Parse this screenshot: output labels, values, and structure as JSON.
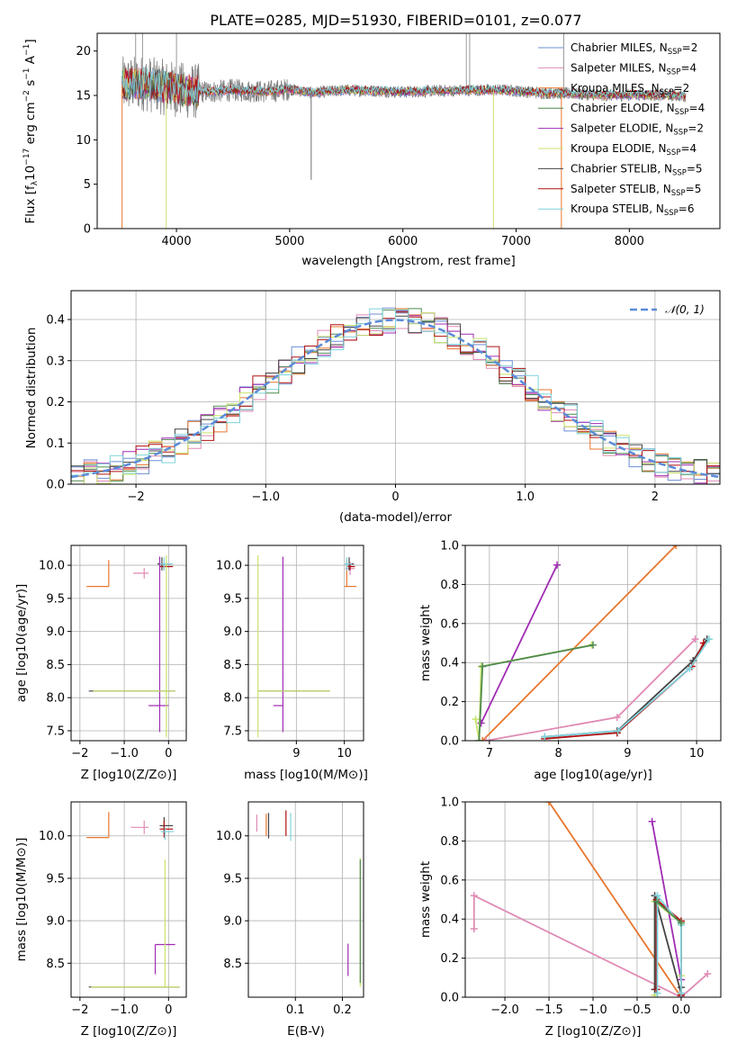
{
  "figure_title": "PLATE=0285, MJD=51930, FIBERID=0101, z=0.077",
  "colors": {
    "chabrier_miles": "#6b8fd6",
    "salpeter_miles": "#e08ab5",
    "kroupa_miles": "#e8762c",
    "chabrier_elodie": "#4f8a4f",
    "salpeter_elodie": "#a02cb4",
    "kroupa_elodie": "#c8e36a",
    "chabrier_stelib": "#444444",
    "salpeter_stelib": "#b01010",
    "kroupa_stelib": "#7fd3dc",
    "observed": "#808080",
    "gauss": "#5b8bd9"
  },
  "legend": [
    {
      "label": "Chabrier MILES, N",
      "sub": "SSP",
      "suffix": "=2",
      "color_key": "chabrier_miles"
    },
    {
      "label": "Salpeter MILES, N",
      "sub": "SSP",
      "suffix": "=4",
      "color_key": "salpeter_miles"
    },
    {
      "label": "Kroupa MILES, N",
      "sub": "SSP",
      "suffix": "=2",
      "color_key": "kroupa_miles"
    },
    {
      "label": "Chabrier ELODIE, N",
      "sub": "SSP",
      "suffix": "=4",
      "color_key": "chabrier_elodie"
    },
    {
      "label": "Salpeter ELODIE, N",
      "sub": "SSP",
      "suffix": "=2",
      "color_key": "salpeter_elodie"
    },
    {
      "label": "Kroupa ELODIE, N",
      "sub": "SSP",
      "suffix": "=4",
      "color_key": "kroupa_elodie"
    },
    {
      "label": "Chabrier STELIB, N",
      "sub": "SSP",
      "suffix": "=5",
      "color_key": "chabrier_stelib"
    },
    {
      "label": "Salpeter STELIB, N",
      "sub": "SSP",
      "suffix": "=5",
      "color_key": "salpeter_stelib"
    },
    {
      "label": "Kroupa STELIB, N",
      "sub": "SSP",
      "suffix": "=6",
      "color_key": "kroupa_stelib"
    }
  ],
  "chart_data": [
    {
      "id": "spectrum",
      "type": "line",
      "title": "PLATE=0285, MJD=51930, FIBERID=0101, z=0.077",
      "xlabel": "wavelength [Angstrom, rest frame]",
      "ylabel_parts": [
        "Flux [f",
        "λ",
        "10",
        "−17",
        " erg cm",
        "−2",
        " s",
        "−1",
        " A",
        "−1",
        "]"
      ],
      "xlim": [
        3300,
        8800
      ],
      "ylim": [
        0,
        22
      ],
      "xticks": [
        4000,
        5000,
        6000,
        7000,
        8000
      ],
      "yticks": [
        0,
        5,
        10,
        15,
        20
      ],
      "continuum": [
        {
          "x": 3520,
          "y": 16.2
        },
        {
          "x": 3700,
          "y": 16.4
        },
        {
          "x": 3900,
          "y": 15.9
        },
        {
          "x": 4100,
          "y": 15.5
        },
        {
          "x": 4300,
          "y": 15.4
        },
        {
          "x": 4500,
          "y": 15.6
        },
        {
          "x": 4800,
          "y": 15.4
        },
        {
          "x": 5000,
          "y": 15.7
        },
        {
          "x": 5200,
          "y": 15.3
        },
        {
          "x": 5500,
          "y": 15.6
        },
        {
          "x": 5800,
          "y": 15.5
        },
        {
          "x": 6000,
          "y": 15.4
        },
        {
          "x": 6300,
          "y": 15.5
        },
        {
          "x": 6600,
          "y": 15.6
        },
        {
          "x": 6900,
          "y": 15.6
        },
        {
          "x": 7200,
          "y": 15.3
        },
        {
          "x": 7500,
          "y": 15.2
        },
        {
          "x": 7800,
          "y": 15.0
        },
        {
          "x": 8100,
          "y": 15.1
        },
        {
          "x": 8400,
          "y": 15.0
        },
        {
          "x": 8500,
          "y": 14.9
        }
      ],
      "model_range": [
        3520,
        8500
      ],
      "observed_range": [
        3520,
        8500
      ],
      "dips": [
        {
          "x": 3520,
          "y": 0,
          "series": "kroupa_miles"
        },
        {
          "x": 3910,
          "y": 0,
          "series": "kroupa_elodie"
        },
        {
          "x": 6800,
          "y": 0,
          "series": "kroupa_elodie"
        },
        {
          "x": 7400,
          "y": 0,
          "series": "kroupa_miles"
        },
        {
          "x": 5190,
          "y": 5.5,
          "series": "observed"
        }
      ]
    },
    {
      "id": "residuals",
      "type": "step-histogram",
      "xlabel": "(data-model)/error",
      "ylabel": "Normed distribution",
      "xlim": [
        -2.5,
        2.5
      ],
      "ylim": [
        0,
        0.47
      ],
      "xticks": [
        -2,
        -1,
        0,
        1,
        2
      ],
      "yticks": [
        0.0,
        0.1,
        0.2,
        0.3,
        0.4
      ],
      "legend_label": "𝒩(0, 1)",
      "gauss": {
        "mean": 0,
        "sigma": 1
      }
    },
    {
      "id": "age_vs_Z",
      "type": "errorbar",
      "xlabel": "Z [log10(Z/Z⊙)]",
      "ylabel": "age  [log10(age/yr)]",
      "xlim": [
        -2.2,
        0.4
      ],
      "ylim": [
        7.35,
        10.3
      ],
      "xticks": [
        -2,
        -1,
        0
      ],
      "yticks": [
        7.5,
        8.0,
        8.5,
        9.0,
        9.5,
        10.0
      ],
      "points": [
        {
          "x": -1.35,
          "y": 9.68,
          "xerr": [
            0.5,
            0.0
          ],
          "yerr": [
            0.0,
            0.4
          ],
          "color_key": "kroupa_miles"
        },
        {
          "x": -0.55,
          "y": 9.88,
          "xerr": [
            0.25,
            0.1
          ],
          "yerr": [
            0.08,
            0.08
          ],
          "color_key": "salpeter_miles"
        },
        {
          "x": -0.15,
          "y": 10.02,
          "xerr": [
            0.1,
            0.2
          ],
          "yerr": [
            0.1,
            0.1
          ],
          "color_key": "chabrier_stelib"
        },
        {
          "x": -0.1,
          "y": 9.98,
          "xerr": [
            0.1,
            0.2
          ],
          "yerr": [
            0.05,
            0.05
          ],
          "color_key": "salpeter_stelib"
        },
        {
          "x": -0.1,
          "y": 10.02,
          "xerr": [
            0.1,
            0.2
          ],
          "yerr": [
            0.1,
            0.1
          ],
          "color_key": "kroupa_stelib"
        },
        {
          "x": -0.2,
          "y": 7.88,
          "xerr": [
            0.25,
            0.2
          ],
          "yerr": [
            0.4,
            2.25
          ],
          "color_key": "salpeter_elodie"
        },
        {
          "x": -0.9,
          "y": 8.1,
          "xerr": [
            0.9,
            1.05
          ],
          "yerr": [
            0.0,
            0.0
          ],
          "color_key": "chabrier_stelib"
        },
        {
          "x": -0.9,
          "y": 8.1,
          "xerr": [
            0.8,
            1.05
          ],
          "yerr": [
            0.0,
            0.0
          ],
          "color_key": "kroupa_elodie"
        },
        {
          "x": -0.05,
          "y": 8.1,
          "xerr": [
            0.0,
            0.0
          ],
          "yerr": [
            0.7,
            2.05
          ],
          "color_key": "kroupa_elodie"
        }
      ]
    },
    {
      "id": "age_vs_mass",
      "type": "errorbar",
      "xlabel": "mass [log10(M/M⊙)]",
      "ylabel": "",
      "xlim": [
        8.0,
        10.4
      ],
      "ylim": [
        7.35,
        10.3
      ],
      "xticks": [
        9,
        10
      ],
      "yticks": [
        7.5,
        8.0,
        8.5,
        9.0,
        9.5,
        10.0
      ],
      "points": [
        {
          "x": 10.05,
          "y": 9.68,
          "xerr": [
            0.05,
            0.2
          ],
          "yerr": [
            0.0,
            0.4
          ],
          "color_key": "kroupa_miles"
        },
        {
          "x": 10.12,
          "y": 9.95,
          "xerr": [
            0.1,
            0.1
          ],
          "yerr": [
            0.1,
            0.1
          ],
          "color_key": "salpeter_miles"
        },
        {
          "x": 10.1,
          "y": 10.02,
          "xerr": [
            0.05,
            0.1
          ],
          "yerr": [
            0.1,
            0.1
          ],
          "color_key": "chabrier_stelib"
        },
        {
          "x": 10.12,
          "y": 9.98,
          "xerr": [
            0.05,
            0.1
          ],
          "yerr": [
            0.05,
            0.05
          ],
          "color_key": "salpeter_stelib"
        },
        {
          "x": 10.05,
          "y": 10.02,
          "xerr": [
            0.05,
            0.1
          ],
          "yerr": [
            0.1,
            0.1
          ],
          "color_key": "kroupa_stelib"
        },
        {
          "x": 8.72,
          "y": 7.88,
          "xerr": [
            0.2,
            0.0
          ],
          "yerr": [
            0.4,
            2.25
          ],
          "color_key": "salpeter_elodie"
        },
        {
          "x": 8.2,
          "y": 8.1,
          "xerr": [
            0.0,
            1.5
          ],
          "yerr": [
            0.0,
            0.0
          ],
          "color_key": "chabrier_stelib"
        },
        {
          "x": 8.2,
          "y": 8.1,
          "xerr": [
            0.0,
            1.5
          ],
          "yerr": [
            0.7,
            2.05
          ],
          "color_key": "kroupa_elodie"
        }
      ]
    },
    {
      "id": "weight_vs_age",
      "type": "line",
      "xlabel": "age  [log10(age/yr)]",
      "ylabel": "mass weight",
      "xlim": [
        6.65,
        10.35
      ],
      "ylim": [
        0,
        1
      ],
      "xticks": [
        7,
        8,
        9,
        10
      ],
      "yticks": [
        0.0,
        0.2,
        0.4,
        0.6,
        0.8,
        1.0
      ],
      "series": [
        {
          "color_key": "kroupa_miles",
          "x": [
            6.9,
            9.7
          ],
          "y": [
            0.0,
            1.0
          ]
        },
        {
          "color_key": "salpeter_elodie",
          "x": [
            6.88,
            7.98
          ],
          "y": [
            0.09,
            0.9
          ]
        },
        {
          "color_key": "kroupa_elodie",
          "x": [
            6.8,
            6.85,
            6.88,
            8.48
          ],
          "y": [
            0.11,
            0.0,
            0.38,
            0.49
          ]
        },
        {
          "color_key": "chabrier_elodie",
          "x": [
            6.85,
            6.9,
            8.5
          ],
          "y": [
            0.0,
            0.38,
            0.49
          ]
        },
        {
          "color_key": "salpeter_miles",
          "x": [
            6.95,
            8.85,
            9.98
          ],
          "y": [
            0.0,
            0.12,
            0.52
          ]
        },
        {
          "color_key": "chabrier_stelib",
          "x": [
            7.8,
            8.85,
            9.95,
            10.15
          ],
          "y": [
            0.02,
            0.05,
            0.41,
            0.52
          ]
        },
        {
          "color_key": "salpeter_stelib",
          "x": [
            7.8,
            8.85,
            9.93,
            10.1
          ],
          "y": [
            0.01,
            0.04,
            0.38,
            0.5
          ]
        },
        {
          "color_key": "kroupa_stelib",
          "x": [
            7.8,
            8.86,
            9.9,
            10.18
          ],
          "y": [
            0.02,
            0.05,
            0.37,
            0.52
          ]
        }
      ]
    },
    {
      "id": "mass_vs_Z",
      "type": "errorbar",
      "xlabel": "Z [log10(Z/Z⊙)]",
      "ylabel": "mass [log10(M/M⊙)]",
      "xlim": [
        -2.2,
        0.4
      ],
      "ylim": [
        8.1,
        10.4
      ],
      "xticks": [
        -2,
        -1,
        0
      ],
      "yticks": [
        8.5,
        9.0,
        9.5,
        10.0
      ],
      "points": [
        {
          "x": -1.35,
          "y": 9.98,
          "xerr": [
            0.5,
            0.0
          ],
          "yerr": [
            0.0,
            0.3
          ],
          "color_key": "kroupa_miles"
        },
        {
          "x": -0.55,
          "y": 10.1,
          "xerr": [
            0.3,
            0.1
          ],
          "yerr": [
            0.08,
            0.08
          ],
          "color_key": "salpeter_miles"
        },
        {
          "x": -0.1,
          "y": 10.12,
          "xerr": [
            0.1,
            0.2
          ],
          "yerr": [
            0.1,
            0.1
          ],
          "color_key": "chabrier_stelib"
        },
        {
          "x": -0.1,
          "y": 10.08,
          "xerr": [
            0.1,
            0.2
          ],
          "yerr": [
            0.1,
            0.1
          ],
          "color_key": "salpeter_stelib"
        },
        {
          "x": -0.08,
          "y": 10.05,
          "xerr": [
            0.1,
            0.2
          ],
          "yerr": [
            0.1,
            0.05
          ],
          "color_key": "kroupa_stelib"
        },
        {
          "x": -0.3,
          "y": 8.72,
          "xerr": [
            0.0,
            0.45
          ],
          "yerr": [
            0.35,
            0.0
          ],
          "color_key": "salpeter_elodie"
        },
        {
          "x": -0.9,
          "y": 8.22,
          "xerr": [
            0.9,
            1.15
          ],
          "yerr": [
            0.0,
            0.0
          ],
          "color_key": "chabrier_stelib"
        },
        {
          "x": -0.9,
          "y": 8.22,
          "xerr": [
            0.85,
            1.15
          ],
          "yerr": [
            0.0,
            0.0
          ],
          "color_key": "kroupa_elodie"
        },
        {
          "x": -0.08,
          "y": 8.22,
          "xerr": [
            0.0,
            0.0
          ],
          "yerr": [
            0.0,
            1.5
          ],
          "color_key": "kroupa_elodie"
        }
      ]
    },
    {
      "id": "mass_vs_ebv",
      "type": "errorbar",
      "xlabel": "E(B-V)",
      "ylabel": "",
      "xlim": [
        0.0,
        0.245
      ],
      "ylim": [
        8.1,
        10.4
      ],
      "xticks": [
        0.1,
        0.2
      ],
      "yticks": [
        8.5,
        9.0,
        9.5,
        10.0
      ],
      "points": [
        {
          "x": 0.018,
          "y": 10.15,
          "xerr": [
            0.0,
            0.0
          ],
          "yerr": [
            0.1,
            0.1
          ],
          "color_key": "salpeter_miles"
        },
        {
          "x": 0.038,
          "y": 10.13,
          "xerr": [
            0.0,
            0.0
          ],
          "yerr": [
            0.13,
            0.13
          ],
          "color_key": "kroupa_miles"
        },
        {
          "x": 0.043,
          "y": 10.12,
          "xerr": [
            0.0,
            0.0
          ],
          "yerr": [
            0.15,
            0.15
          ],
          "color_key": "chabrier_stelib"
        },
        {
          "x": 0.08,
          "y": 10.15,
          "xerr": [
            0.0,
            0.0
          ],
          "yerr": [
            0.15,
            0.15
          ],
          "color_key": "salpeter_stelib"
        },
        {
          "x": 0.09,
          "y": 10.12,
          "xerr": [
            0.0,
            0.0
          ],
          "yerr": [
            0.18,
            0.15
          ],
          "color_key": "kroupa_stelib"
        },
        {
          "x": 0.212,
          "y": 8.55,
          "xerr": [
            0.0,
            0.0
          ],
          "yerr": [
            0.2,
            0.18
          ],
          "color_key": "salpeter_elodie"
        },
        {
          "x": 0.238,
          "y": 8.97,
          "xerr": [
            0.0,
            0.0
          ],
          "yerr": [
            0.75,
            0.77
          ],
          "color_key": "kroupa_elodie"
        },
        {
          "x": 0.238,
          "y": 8.97,
          "xerr": [
            0.0,
            0.0
          ],
          "yerr": [
            0.7,
            0.75
          ],
          "color_key": "chabrier_elodie"
        }
      ]
    },
    {
      "id": "weight_vs_Z",
      "type": "line",
      "xlabel": "Z [log10(Z/Z⊙)]",
      "ylabel": "mass weight",
      "xlim": [
        -2.45,
        0.45
      ],
      "ylim": [
        0,
        1
      ],
      "xticks": [
        -2.0,
        -1.5,
        -1.0,
        -0.5,
        0.0
      ],
      "yticks": [
        0.0,
        0.2,
        0.4,
        0.6,
        0.8,
        1.0
      ],
      "series": [
        {
          "color_key": "kroupa_miles",
          "x": [
            -1.5,
            0.0
          ],
          "y": [
            1.0,
            0.0
          ]
        },
        {
          "color_key": "salpeter_miles",
          "x": [
            -2.35,
            -2.35,
            0.0,
            0.3
          ],
          "y": [
            0.35,
            0.52,
            0.0,
            0.12
          ]
        },
        {
          "color_key": "salpeter_elodie",
          "x": [
            -0.33,
            0.0
          ],
          "y": [
            0.9,
            0.09
          ]
        },
        {
          "color_key": "kroupa_elodie",
          "x": [
            -0.3,
            -0.3,
            0.0,
            0.0
          ],
          "y": [
            0.01,
            0.49,
            0.38,
            0.11
          ]
        },
        {
          "color_key": "chabrier_stelib",
          "x": [
            -0.3,
            -0.3,
            0.0,
            0.0
          ],
          "y": [
            0.04,
            0.52,
            0.02,
            0.05
          ]
        },
        {
          "color_key": "salpeter_stelib",
          "x": [
            -0.28,
            -0.28,
            0.0,
            0.0
          ],
          "y": [
            0.04,
            0.5,
            0.39,
            0.01
          ]
        },
        {
          "color_key": "kroupa_stelib",
          "x": [
            -0.27,
            -0.27,
            0.0,
            0.0
          ],
          "y": [
            0.02,
            0.52,
            0.37,
            0.02
          ]
        },
        {
          "color_key": "chabrier_elodie",
          "x": [
            -0.28,
            0.0
          ],
          "y": [
            0.49,
            0.38
          ]
        }
      ]
    }
  ]
}
